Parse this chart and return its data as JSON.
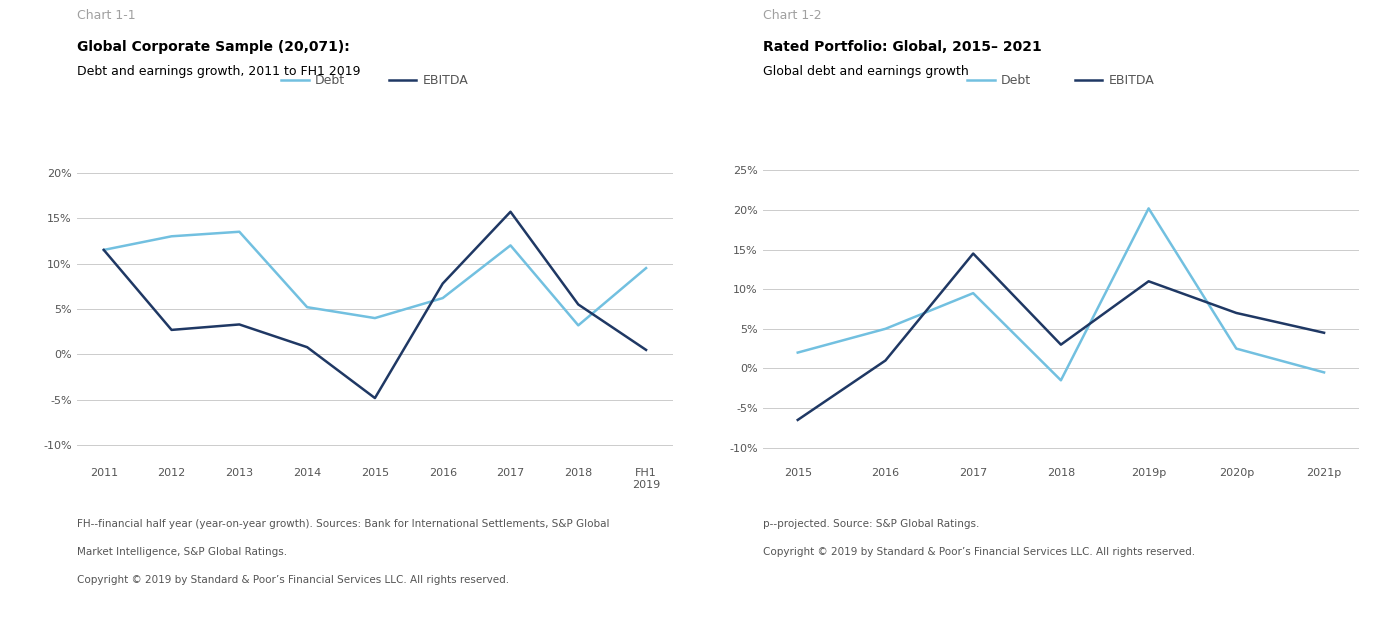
{
  "chart1": {
    "title_label": "Chart 1-1",
    "bold_title": "Global Corporate Sample (20,071):",
    "subtitle": "Debt and earnings growth, 2011 to FH1 2019",
    "x_labels": [
      "2011",
      "2012",
      "2013",
      "2014",
      "2015",
      "2016",
      "2017",
      "2018",
      "FH1\n2019"
    ],
    "debt": [
      11.5,
      13.0,
      13.5,
      5.2,
      4.0,
      6.2,
      12.0,
      3.2,
      9.5
    ],
    "ebitda": [
      11.5,
      2.7,
      3.3,
      0.8,
      -4.8,
      7.8,
      15.7,
      5.5,
      0.5
    ],
    "debt_color": "#72C0E0",
    "ebitda_color": "#1F3864",
    "ylim": [
      -12,
      22
    ],
    "yticks": [
      -10,
      -5,
      0,
      5,
      10,
      15,
      20
    ],
    "footnote_line1": "FH--financial half year (year-on-year growth). Sources: Bank for International Settlements, S&P Global",
    "footnote_line2": "Market Intelligence, S&P Global Ratings.",
    "footnote_line3": "Copyright © 2019 by Standard & Poor’s Financial Services LLC. All rights reserved."
  },
  "chart2": {
    "title_label": "Chart 1-2",
    "bold_title": "Rated Portfolio: Global, 2015– 2021",
    "subtitle": "Global debt and earnings growth",
    "x_labels": [
      "2015",
      "2016",
      "2017",
      "2018",
      "2019p",
      "2020p",
      "2021p"
    ],
    "debt": [
      2.0,
      5.0,
      9.5,
      -1.5,
      20.2,
      2.5,
      -0.5
    ],
    "ebitda": [
      -6.5,
      1.0,
      14.5,
      3.0,
      11.0,
      7.0,
      4.5
    ],
    "debt_color": "#72C0E0",
    "ebitda_color": "#1F3864",
    "ylim": [
      -12,
      27
    ],
    "yticks": [
      -10,
      -5,
      0,
      5,
      10,
      15,
      20,
      25
    ],
    "footnote_line1": "p--projected. Source: S&P Global Ratings.",
    "footnote_line2": "Copyright © 2019 by Standard & Poor’s Financial Services LLC. All rights reserved.",
    "footnote_line3": ""
  },
  "legend_debt_label": "Debt",
  "legend_ebitda_label": "EBITDA",
  "grid_color": "#CCCCCC",
  "axis_label_color": "#555555",
  "title_label_color": "#A0A0A0",
  "background_color": "#FFFFFF",
  "font_size_title_label": 9,
  "font_size_bold_title": 10,
  "font_size_subtitle": 9,
  "font_size_axis": 8,
  "font_size_legend": 9,
  "font_size_footnote": 7.5
}
